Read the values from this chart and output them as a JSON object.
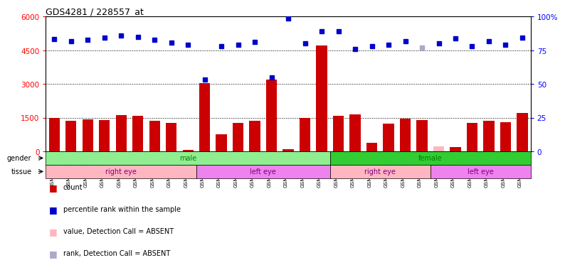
{
  "title": "GDS4281 / 228557_at",
  "samples": [
    "GSM685471",
    "GSM685472",
    "GSM685473",
    "GSM685601",
    "GSM685650",
    "GSM685651",
    "GSM686961",
    "GSM686962",
    "GSM686988",
    "GSM686990",
    "GSM685522",
    "GSM685523",
    "GSM685603",
    "GSM686963",
    "GSM686986",
    "GSM686989",
    "GSM686991",
    "GSM685474",
    "GSM685602",
    "GSM686984",
    "GSM686985",
    "GSM686987",
    "GSM687004",
    "GSM685470",
    "GSM685475",
    "GSM685652",
    "GSM687001",
    "GSM687002",
    "GSM687003"
  ],
  "counts": [
    1480,
    1350,
    1430,
    1390,
    1620,
    1580,
    1350,
    1280,
    60,
    3050,
    760,
    1270,
    1360,
    3200,
    110,
    1480,
    4700,
    1590,
    1640,
    380,
    1240,
    1450,
    1380,
    220,
    200,
    1260,
    1350,
    1300,
    1720
  ],
  "ranks_pct": [
    83.5,
    81.7,
    82.8,
    84.2,
    85.8,
    84.7,
    82.5,
    80.5,
    79.2,
    53.3,
    78.0,
    78.8,
    81.2,
    55.0,
    98.7,
    80.2,
    88.8,
    89.2,
    76.0,
    77.8,
    78.8,
    81.7,
    77.0,
    80.2,
    83.8,
    78.0,
    81.5,
    79.0,
    84.2
  ],
  "absent_value_indices": [
    23
  ],
  "absent_rank_indices": [
    22
  ],
  "gender_groups": [
    {
      "label": "male",
      "start": 0,
      "end": 17,
      "color": "#90EE90"
    },
    {
      "label": "female",
      "start": 17,
      "end": 29,
      "color": "#32CD32"
    }
  ],
  "tissue_groups": [
    {
      "label": "right eye",
      "start": 0,
      "end": 9,
      "color": "#FFB6C1"
    },
    {
      "label": "left eye",
      "start": 9,
      "end": 17,
      "color": "#EE82EE"
    },
    {
      "label": "right eye",
      "start": 17,
      "end": 23,
      "color": "#FFB6C1"
    },
    {
      "label": "left eye",
      "start": 23,
      "end": 29,
      "color": "#EE82EE"
    }
  ],
  "ylim_left": [
    0,
    6000
  ],
  "ylim_right": [
    0,
    100
  ],
  "yticks_left": [
    0,
    1500,
    3000,
    4500,
    6000
  ],
  "yticks_right": [
    0,
    25,
    50,
    75,
    100
  ],
  "ytick_labels_left": [
    "0",
    "1500",
    "3000",
    "4500",
    "6000"
  ],
  "ytick_labels_right": [
    "0",
    "25",
    "50",
    "75",
    "100%"
  ],
  "bar_color": "#CC0000",
  "dot_color": "#0000CC",
  "absent_bar_color": "#FFB6C1",
  "absent_dot_color": "#AAAACC",
  "bg_color": "#FFFFFF"
}
